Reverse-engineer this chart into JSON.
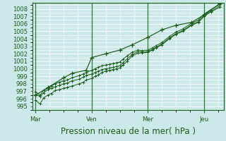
{
  "xlabel": "Pression niveau de la mer( hPa )",
  "bg_color": "#cce8e8",
  "plot_bg_color": "#cce8e8",
  "grid_color": "#ffffff",
  "grid_minor_color": "#ddf0f0",
  "line_color": "#1a5c1a",
  "vline_color": "#2d7a2d",
  "ylim": [
    994.5,
    1008.8
  ],
  "yticks": [
    995,
    996,
    997,
    998,
    999,
    1000,
    1001,
    1002,
    1003,
    1004,
    1005,
    1006,
    1007,
    1008
  ],
  "xtick_labels": [
    "Mar",
    "Ven",
    "Mer",
    "Jeu"
  ],
  "xtick_positions": [
    0.0,
    1.0,
    2.0,
    3.0
  ],
  "xlim": [
    -0.05,
    3.35
  ],
  "series1_x": [
    0.0,
    0.08,
    0.14,
    0.22,
    0.28,
    0.35,
    0.42,
    0.5,
    0.56,
    0.65,
    0.78,
    0.85,
    0.9,
    1.0,
    1.06,
    1.12,
    1.18,
    1.25,
    1.32,
    1.38,
    1.44,
    1.5,
    1.56,
    1.63,
    1.72,
    1.82,
    1.9,
    2.0,
    2.08,
    2.15,
    2.25,
    2.38,
    2.5,
    2.62,
    2.78,
    2.9,
    3.0,
    3.12,
    3.28
  ],
  "series1_y": [
    995.8,
    995.3,
    996.1,
    996.5,
    996.7,
    997.1,
    997.2,
    997.4,
    997.5,
    997.7,
    998.0,
    998.2,
    998.5,
    998.7,
    999.0,
    999.2,
    999.5,
    999.7,
    999.8,
    999.9,
    1000.0,
    1000.1,
    1000.5,
    1001.0,
    1001.7,
    1002.1,
    1002.1,
    1002.2,
    1002.5,
    1002.8,
    1003.2,
    1004.0,
    1004.6,
    1005.0,
    1005.8,
    1006.2,
    1007.0,
    1007.6,
    1008.2
  ],
  "series2_x": [
    0.0,
    0.08,
    0.14,
    0.22,
    0.28,
    0.35,
    0.42,
    0.5,
    0.56,
    0.65,
    0.78,
    0.85,
    0.9,
    1.0,
    1.06,
    1.12,
    1.18,
    1.25,
    1.32,
    1.38,
    1.44,
    1.5,
    1.56,
    1.63,
    1.72,
    1.82,
    1.9,
    2.0,
    2.08,
    2.15,
    2.25,
    2.38,
    2.5,
    2.62,
    2.78,
    2.9,
    3.0,
    3.12,
    3.28
  ],
  "series2_y": [
    996.6,
    996.3,
    996.8,
    997.2,
    997.4,
    997.6,
    997.8,
    998.0,
    998.1,
    998.4,
    998.6,
    998.9,
    999.1,
    999.3,
    999.5,
    999.7,
    999.9,
    1000.0,
    1000.1,
    1000.2,
    1000.3,
    1000.4,
    1000.8,
    1001.3,
    1001.9,
    1002.3,
    1002.2,
    1002.3,
    1002.6,
    1002.9,
    1003.3,
    1004.1,
    1004.7,
    1005.1,
    1005.9,
    1006.3,
    1007.1,
    1007.7,
    1008.4
  ],
  "series3_x": [
    0.0,
    0.08,
    0.14,
    0.22,
    0.28,
    0.35,
    0.42,
    0.5,
    0.56,
    0.65,
    0.78,
    0.85,
    0.9,
    1.0,
    1.06,
    1.12,
    1.18,
    1.25,
    1.32,
    1.38,
    1.44,
    1.5,
    1.56,
    1.63,
    1.72,
    1.82,
    1.9,
    2.0,
    2.08,
    2.15,
    2.25,
    2.38,
    2.5,
    2.62,
    2.78,
    2.9,
    3.0,
    3.12,
    3.28
  ],
  "series3_y": [
    996.9,
    996.5,
    997.1,
    997.4,
    997.7,
    998.0,
    998.2,
    998.4,
    998.5,
    998.8,
    999.1,
    999.3,
    999.5,
    999.8,
    1000.0,
    1000.2,
    1000.4,
    1000.5,
    1000.6,
    1000.7,
    1000.8,
    1000.9,
    1001.3,
    1001.7,
    1002.2,
    1002.5,
    1002.4,
    1002.5,
    1002.8,
    1003.1,
    1003.5,
    1004.3,
    1004.9,
    1005.3,
    1006.1,
    1006.5,
    1007.3,
    1007.9,
    1008.6
  ],
  "series4_x": [
    0.0,
    0.22,
    0.5,
    0.65,
    0.9,
    1.0,
    1.25,
    1.5,
    1.72,
    2.0,
    2.25,
    2.5,
    2.78,
    3.0,
    3.28
  ],
  "series4_y": [
    996.5,
    997.5,
    998.8,
    999.4,
    999.8,
    1001.5,
    1002.0,
    1002.5,
    1003.2,
    1004.2,
    1005.2,
    1005.8,
    1006.2,
    1007.2,
    1008.7
  ],
  "marker": "+",
  "marker_size": 3.5,
  "line_width": 0.7,
  "font_color": "#1a5c1a",
  "tick_fontsize": 6.0,
  "xlabel_fontsize": 8.5
}
